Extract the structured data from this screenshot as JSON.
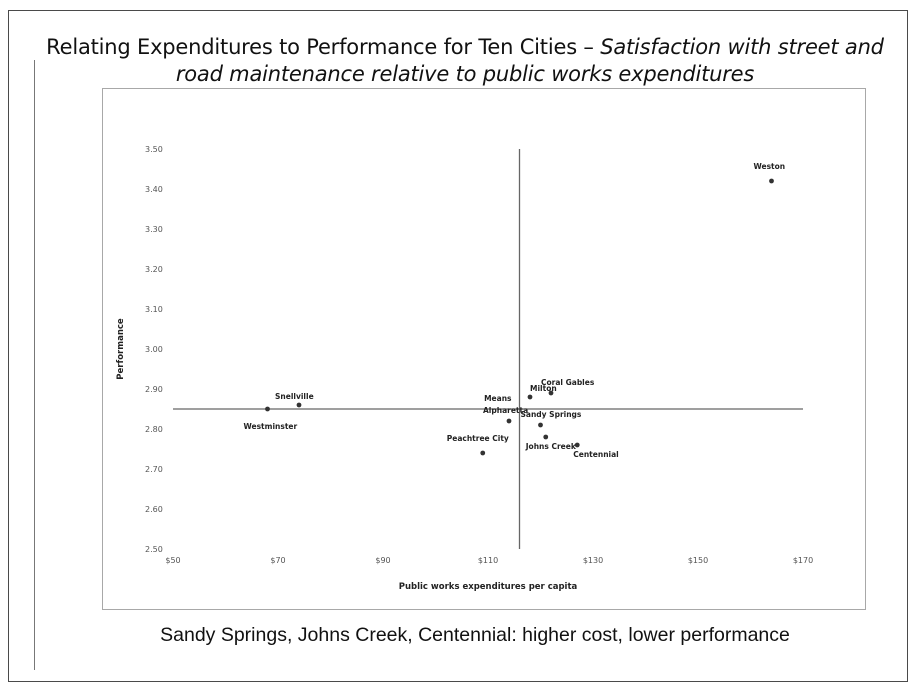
{
  "title": {
    "main": "Relating Expenditures to Performance for Ten Cities –",
    "italic": "Satisfaction with street and road maintenance relative to public works expenditures"
  },
  "caption": "Sandy Springs, Johns Creek, Centennial: higher cost, lower performance",
  "chart_data": {
    "type": "scatter",
    "xlabel": "Public works expenditures per capita",
    "ylabel": "Performance",
    "xlim": [
      50,
      170
    ],
    "ylim": [
      2.5,
      3.5
    ],
    "x_ticks": [
      "$50",
      "$70",
      "$90",
      "$110",
      "$130",
      "$150",
      "$170"
    ],
    "y_ticks": [
      "3.50",
      "3.40",
      "3.30",
      "3.20",
      "3.10",
      "3.00",
      "2.90",
      "2.80",
      "2.70",
      "2.60",
      "2.50"
    ],
    "means": {
      "label": "Means",
      "x": 116,
      "y": 2.85
    },
    "points": [
      {
        "name": "Weston",
        "x": 164,
        "y": 3.42
      },
      {
        "name": "Coral Gables",
        "x": 122,
        "y": 2.89
      },
      {
        "name": "Milton",
        "x": 118,
        "y": 2.88
      },
      {
        "name": "Snellville",
        "x": 74,
        "y": 2.86
      },
      {
        "name": "Westminster",
        "x": 68,
        "y": 2.85
      },
      {
        "name": "Alpharetta",
        "x": 114,
        "y": 2.82
      },
      {
        "name": "Sandy Springs",
        "x": 120,
        "y": 2.81
      },
      {
        "name": "Johns Creek",
        "x": 121,
        "y": 2.78
      },
      {
        "name": "Centennial",
        "x": 127,
        "y": 2.76
      },
      {
        "name": "Peachtree City",
        "x": 109,
        "y": 2.74
      }
    ],
    "grid": false,
    "legend": "none"
  }
}
